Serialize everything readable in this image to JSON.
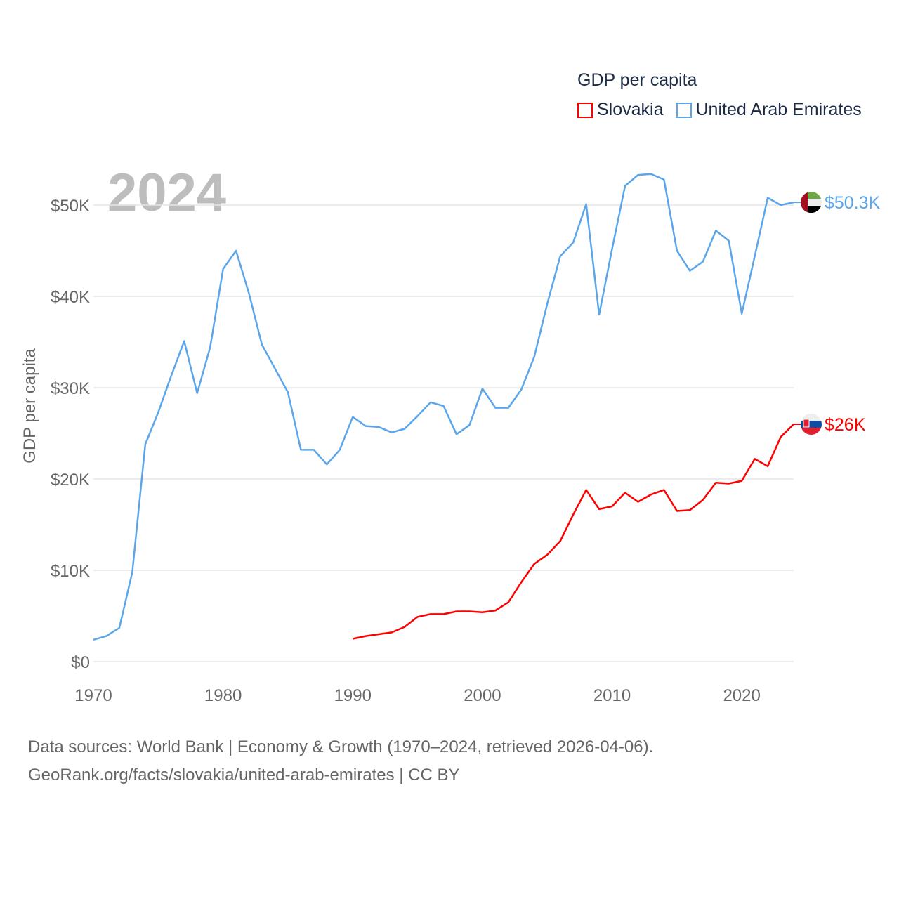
{
  "chart_data": {
    "type": "line",
    "title": "GDP per capita",
    "year_label": "2024",
    "xlabel": "",
    "ylabel": "GDP per capita",
    "xlim": [
      1970,
      2024
    ],
    "ylim": [
      0,
      50000
    ],
    "x_ticks": [
      1970,
      1980,
      1990,
      2000,
      2010,
      2020
    ],
    "x_tick_labels": [
      "1970",
      "1980",
      "1990",
      "2000",
      "2010",
      "2020"
    ],
    "y_ticks": [
      0,
      10000,
      20000,
      30000,
      40000,
      50000
    ],
    "y_tick_labels": [
      "$0",
      "$10K",
      "$20K",
      "$30K",
      "$40K",
      "$50K"
    ],
    "grid": true,
    "legend_position": "top-right",
    "series": [
      {
        "name": "Slovakia",
        "color": "#ff0000",
        "end_label": "$26K",
        "flag": "slovakia-flag",
        "start_year": 1990,
        "values": [
          2500,
          2800,
          3000,
          3200,
          3800,
          4900,
          5200,
          5200,
          5500,
          5500,
          5400,
          5600,
          6500,
          8700,
          10700,
          11700,
          13200,
          16100,
          18800,
          16700,
          17000,
          18500,
          17500,
          18300,
          18800,
          16500,
          16600,
          17700,
          19600,
          19500,
          19800,
          22200,
          21400,
          24600,
          26000
        ]
      },
      {
        "name": "United Arab Emirates",
        "color": "#5ba6ea",
        "end_label": "$50.3K",
        "flag": "uae-flag",
        "start_year": 1970,
        "values": [
          2400,
          2800,
          3700,
          9800,
          23800,
          27300,
          31300,
          35100,
          29400,
          34400,
          43000,
          45000,
          40300,
          34700,
          32100,
          29500,
          23200,
          23200,
          21600,
          23200,
          26800,
          25800,
          25700,
          25100,
          25500,
          26900,
          28400,
          28000,
          24900,
          25900,
          29900,
          27800,
          27800,
          29800,
          33400,
          39200,
          44400,
          45900,
          50100,
          38000,
          45200,
          52100,
          53300,
          53400,
          52800,
          45000,
          42800,
          43800,
          47200,
          46100,
          38100,
          44400,
          50800,
          50000,
          50300
        ]
      }
    ]
  },
  "footer": {
    "line1": "Data sources: World Bank | Economy & Growth (1970–2024, retrieved 2026-04-06).",
    "line2": "GeoRank.org/facts/slovakia/united-arab-emirates | CC BY"
  }
}
